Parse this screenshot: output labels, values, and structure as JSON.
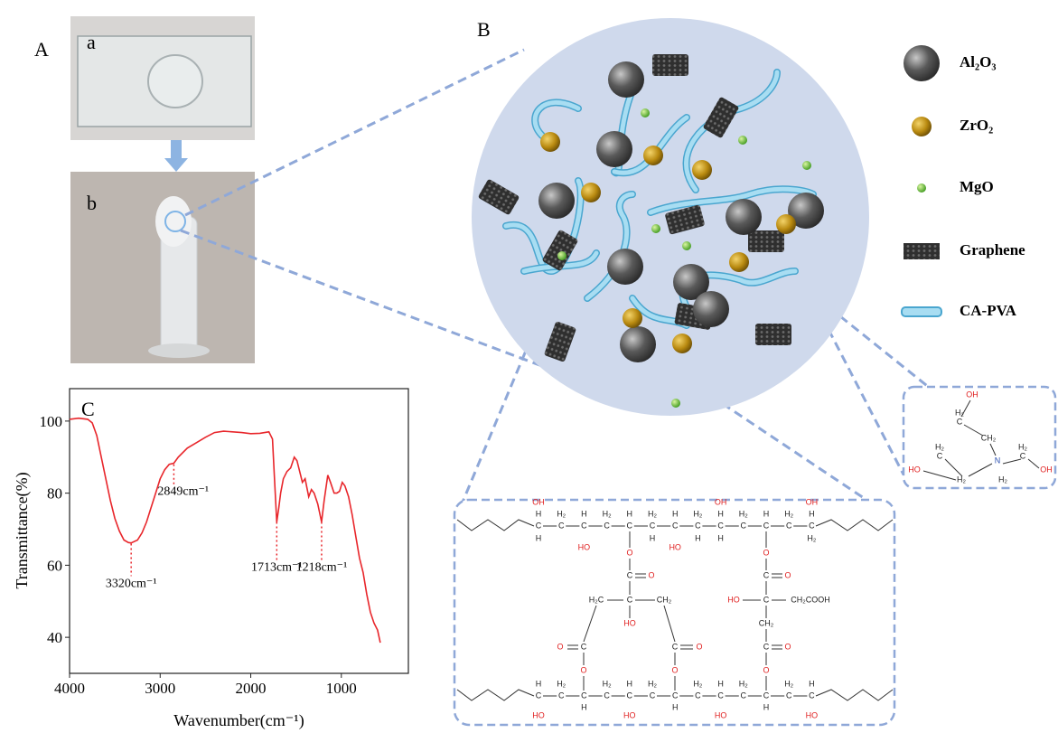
{
  "panels": {
    "A": "A",
    "a": "a",
    "b": "b",
    "B": "B"
  },
  "legend": [
    "Al₂O₃",
    "ZrO₂",
    "MgO",
    "Graphene",
    "CA-PVA"
  ],
  "tea_structure": {
    "labels": [
      "OH",
      "H₂",
      "C",
      "CH₂",
      "N",
      "H₂",
      "C",
      "H₂",
      "C",
      "HO",
      "OH",
      "H₂",
      "H₂"
    ]
  },
  "polymer_structure": {
    "labels": [
      "C",
      "C",
      "C",
      "C",
      "C",
      "C",
      "C",
      "C",
      "C",
      "C",
      "C",
      "C",
      "C",
      "H",
      "H₂",
      "H",
      "H₂",
      "H",
      "H₂",
      "H",
      "H₂",
      "H",
      "H₂",
      "H",
      "H₂",
      "H",
      "OH",
      "OH",
      "OH",
      "H",
      "HO",
      "H",
      "HO",
      "H",
      "H",
      "H₂",
      "O",
      "C",
      "O",
      "H₂C",
      "C",
      "CH₂",
      "HO",
      "O",
      "C",
      "C",
      "O",
      "O",
      "O",
      "O",
      "C",
      "O",
      "HO",
      "C",
      "CH₂COOH",
      "CH₂",
      "C",
      "O",
      "O",
      "C",
      "C",
      "C",
      "C",
      "C",
      "C",
      "C",
      "C",
      "C",
      "C",
      "C",
      "C",
      "C",
      "H",
      "H₂",
      "H₂",
      "H",
      "H₂",
      "H₂",
      "H",
      "H₂",
      "H₂",
      "H",
      "H",
      "H",
      "H",
      "HO",
      "HO",
      "HO",
      "HO"
    ]
  },
  "chart_data": {
    "type": "line",
    "title": "C",
    "x_label": "Wavenumber(cm⁻¹)",
    "y_label": "Transmittance(%)",
    "color": "#e8262b",
    "x": [
      4000,
      3900,
      3800,
      3750,
      3700,
      3650,
      3600,
      3550,
      3500,
      3450,
      3400,
      3350,
      3320,
      3250,
      3200,
      3150,
      3100,
      3050,
      3000,
      2950,
      2900,
      2849,
      2800,
      2700,
      2600,
      2500,
      2400,
      2300,
      2200,
      2100,
      2000,
      1900,
      1800,
      1760,
      1740,
      1713,
      1690,
      1670,
      1640,
      1600,
      1560,
      1520,
      1490,
      1460,
      1430,
      1400,
      1360,
      1330,
      1300,
      1260,
      1218,
      1190,
      1150,
      1120,
      1080,
      1050,
      1020,
      990,
      960,
      920,
      880,
      840,
      800,
      760,
      720,
      680,
      640,
      600,
      570
    ],
    "values": [
      100.5,
      100.8,
      100.5,
      99.5,
      96,
      90,
      84,
      78,
      73,
      69.5,
      67,
      66.3,
      66.2,
      67,
      69,
      72,
      76,
      80,
      84,
      86.5,
      88,
      88.3,
      90,
      92.5,
      94,
      95.5,
      96.8,
      97.2,
      97,
      96.8,
      96.5,
      96.6,
      97,
      95,
      85,
      72,
      76,
      80,
      84,
      86,
      87,
      90,
      89,
      86,
      83,
      84,
      79,
      81,
      80,
      77,
      72,
      78,
      85,
      83,
      80,
      80,
      80.5,
      83,
      82,
      79,
      74,
      68,
      62,
      58,
      52,
      47,
      44,
      42,
      38.5
    ],
    "xlim": [
      4000,
      260
    ],
    "ylim": [
      30,
      109
    ],
    "xticks": [
      4000,
      3000,
      2000,
      1000
    ],
    "yticks": [
      40,
      60,
      80,
      100
    ],
    "annotations": [
      {
        "x": 3320,
        "label": "3320cm⁻¹"
      },
      {
        "x": 2849,
        "label": "2849cm⁻¹"
      },
      {
        "x": 1713,
        "label": "1713cm⁻¹"
      },
      {
        "x": 1218,
        "label": "1218cm⁻¹"
      }
    ]
  }
}
